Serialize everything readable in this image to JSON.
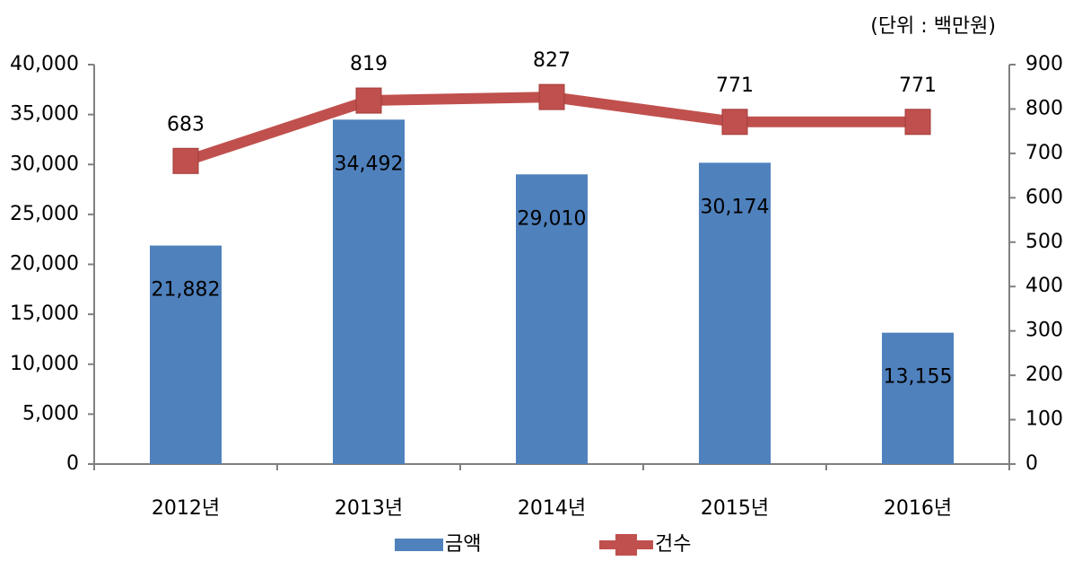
{
  "chart_data": {
    "type": "bar_line",
    "annotation": "(단위 : 백만원)",
    "categories": [
      "2012년",
      "2013년",
      "2014년",
      "2015년",
      "2016년"
    ],
    "series": [
      {
        "name": "금액",
        "color": "#4f81bd",
        "type": "bar",
        "axis": "y",
        "values": [
          21882,
          34492,
          29010,
          30174,
          13155
        ],
        "value_labels": [
          "21,882",
          "34,492",
          "29,010",
          "30,174",
          "13,155"
        ]
      },
      {
        "name": "건수",
        "color": "#c0504d",
        "type": "line",
        "axis": "y2",
        "values": [
          683,
          819,
          827,
          771,
          771
        ]
      }
    ],
    "ylim": [
      0,
      40000
    ],
    "yticks": [
      0,
      {
        "value": 5000,
        "label": "5,000"
      },
      {
        "value": 10000,
        "label": "10,000"
      },
      {
        "value": 15000,
        "label": "15,000"
      },
      {
        "value": 20000,
        "label": "20,000"
      },
      {
        "value": 25000,
        "label": "25,000"
      },
      {
        "value": 30000,
        "label": "30,000"
      },
      {
        "value": 35000,
        "label": "35,000"
      },
      {
        "value": 40000,
        "label": "40,000"
      }
    ],
    "y2lim": [
      0,
      900
    ],
    "y2ticks": [
      0,
      100,
      200,
      300,
      400,
      500,
      600,
      700,
      800,
      900
    ],
    "legend": "bottom"
  }
}
